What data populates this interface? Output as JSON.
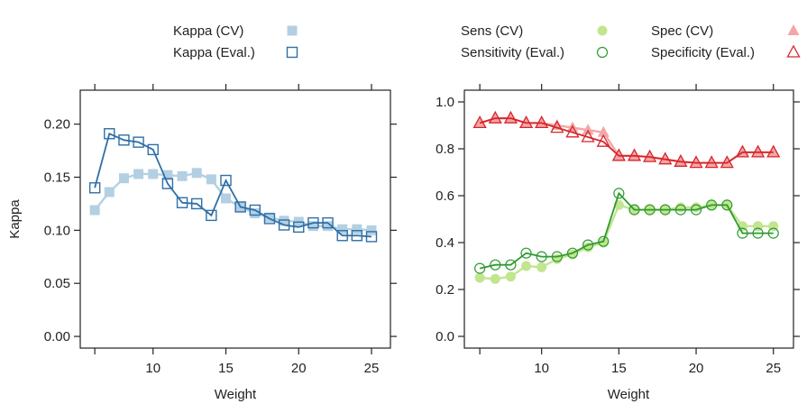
{
  "chart_data": [
    {
      "type": "line",
      "panel": "left",
      "title": "",
      "xlabel": "Weight",
      "ylabel": "Kappa",
      "xlim": [
        5,
        26.3
      ],
      "ylim": [
        -0.011,
        0.232
      ],
      "xticks": [
        10,
        15,
        20,
        25
      ],
      "yticks": [
        0.0,
        0.05,
        0.1,
        0.15,
        0.2
      ],
      "ytick_labels": [
        "0.00",
        "0.05",
        "0.10",
        "0.15",
        "0.20"
      ],
      "x": [
        6,
        7,
        8,
        9,
        10,
        11,
        12,
        13,
        14,
        15,
        16,
        17,
        18,
        19,
        20,
        21,
        22,
        23,
        24,
        25
      ],
      "legend_position": "top",
      "series": [
        {
          "name": "Kappa (CV)",
          "marker": "filled-square",
          "color": "#b3d0e2",
          "values": [
            0.119,
            0.136,
            0.149,
            0.153,
            0.153,
            0.152,
            0.151,
            0.154,
            0.148,
            0.13,
            0.122,
            0.116,
            0.112,
            0.109,
            0.108,
            0.104,
            0.104,
            0.101,
            0.101,
            0.1
          ]
        },
        {
          "name": "Kappa (Eval.)",
          "marker": "open-square",
          "color": "#2f6fa8",
          "values": [
            0.14,
            0.191,
            0.185,
            0.183,
            0.176,
            0.144,
            0.126,
            0.125,
            0.114,
            0.147,
            0.122,
            0.119,
            0.111,
            0.105,
            0.103,
            0.107,
            0.107,
            0.095,
            0.095,
            0.094
          ]
        }
      ]
    },
    {
      "type": "line",
      "panel": "right",
      "title": "",
      "xlabel": "Weight",
      "ylabel": "",
      "xlim": [
        5,
        26.3
      ],
      "ylim": [
        -0.05,
        1.05
      ],
      "xticks": [
        10,
        15,
        20,
        25
      ],
      "yticks": [
        0.0,
        0.2,
        0.4,
        0.6,
        0.8,
        1.0
      ],
      "ytick_labels": [
        "0.0",
        "0.2",
        "0.4",
        "0.6",
        "0.8",
        "1.0"
      ],
      "x": [
        6,
        7,
        8,
        9,
        10,
        11,
        12,
        13,
        14,
        15,
        16,
        17,
        18,
        19,
        20,
        21,
        22,
        23,
        24,
        25
      ],
      "legend_position": "top",
      "series": [
        {
          "name": "Sens (CV)",
          "marker": "filled-circle",
          "color": "#c2e58f",
          "values": [
            0.25,
            0.245,
            0.255,
            0.3,
            0.295,
            0.33,
            0.35,
            0.38,
            0.4,
            0.56,
            0.54,
            0.54,
            0.54,
            0.55,
            0.55,
            0.56,
            0.56,
            0.47,
            0.47,
            0.47
          ]
        },
        {
          "name": "Sensitivity (Eval.)",
          "marker": "open-circle",
          "color": "#2e9a30",
          "values": [
            0.29,
            0.305,
            0.305,
            0.355,
            0.34,
            0.34,
            0.355,
            0.39,
            0.405,
            0.61,
            0.54,
            0.54,
            0.54,
            0.54,
            0.54,
            0.56,
            0.56,
            0.44,
            0.44,
            0.44
          ]
        },
        {
          "name": "Spec (CV)",
          "marker": "filled-triangle",
          "color": "#f3a6a8",
          "values": [
            0.91,
            0.93,
            0.93,
            0.91,
            0.91,
            0.9,
            0.89,
            0.88,
            0.87,
            0.77,
            0.77,
            0.765,
            0.755,
            0.745,
            0.74,
            0.74,
            0.74,
            0.785,
            0.785,
            0.785
          ]
        },
        {
          "name": "Specificity (Eval.)",
          "marker": "open-triangle",
          "color": "#d7262a",
          "values": [
            0.91,
            0.93,
            0.93,
            0.91,
            0.91,
            0.89,
            0.87,
            0.85,
            0.83,
            0.77,
            0.77,
            0.765,
            0.755,
            0.745,
            0.74,
            0.74,
            0.74,
            0.785,
            0.785,
            0.785
          ]
        }
      ]
    }
  ]
}
